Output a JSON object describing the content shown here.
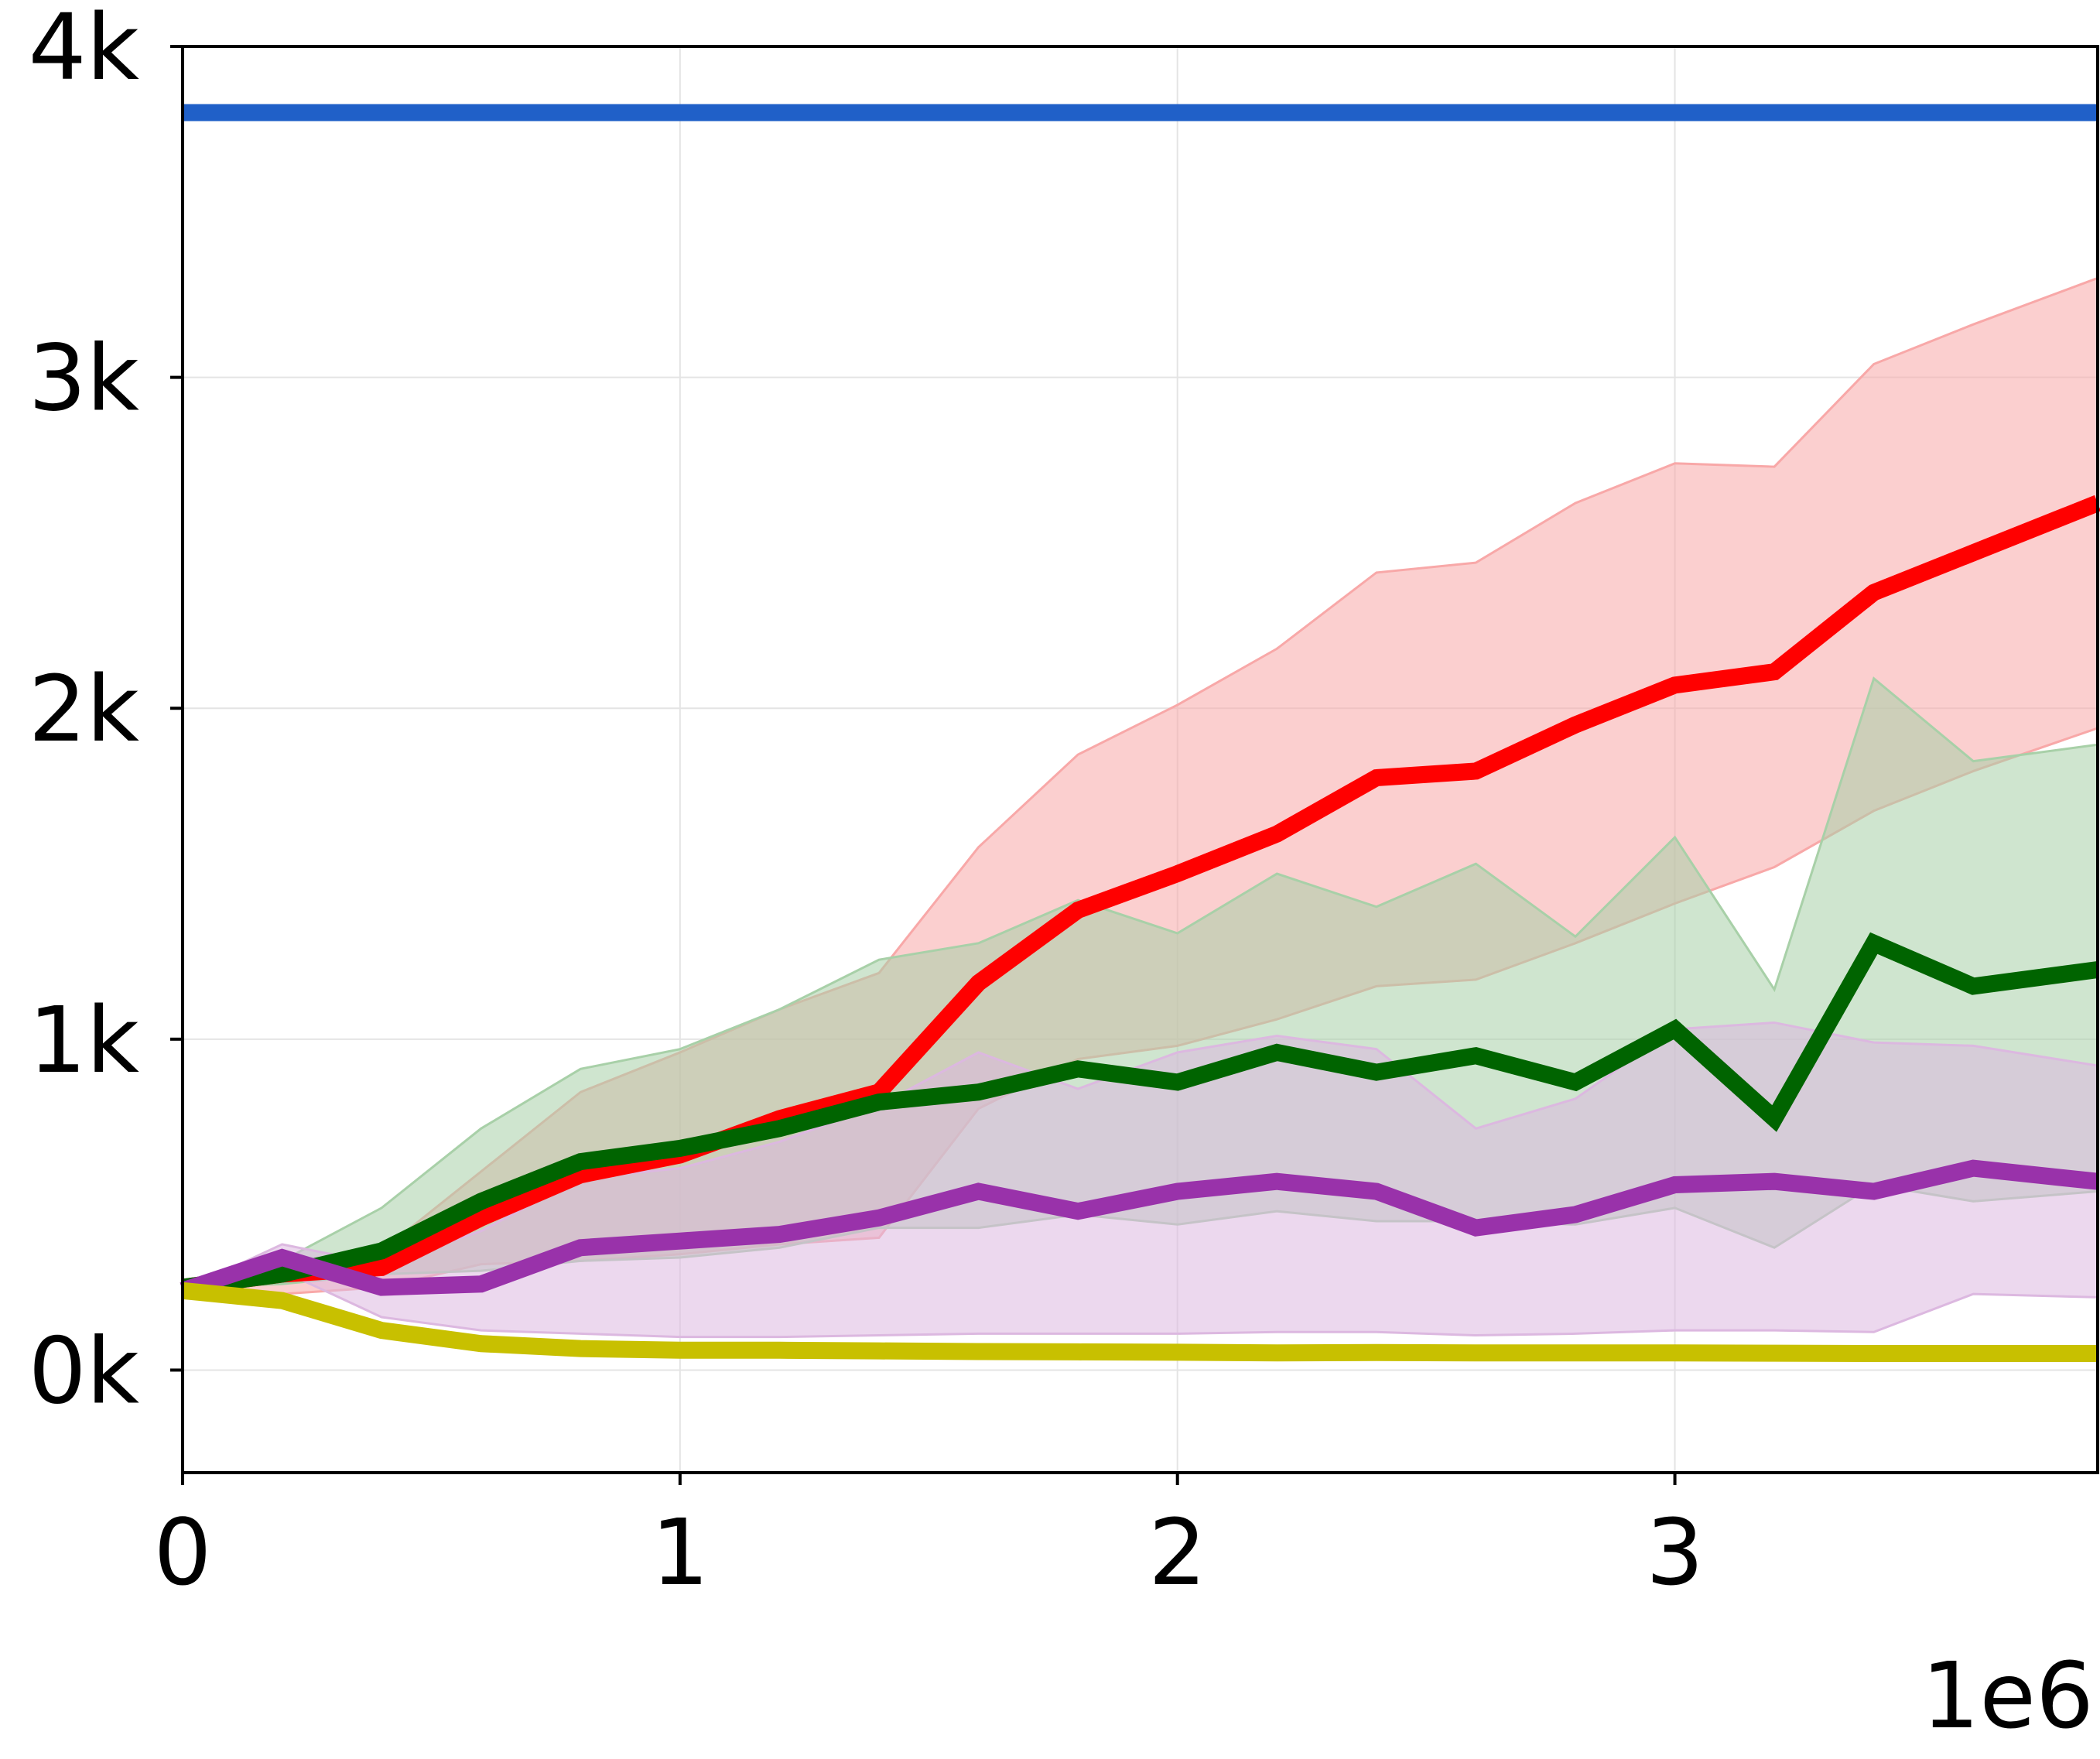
{
  "chart_data": {
    "type": "line",
    "title": "",
    "xlabel": "",
    "ylabel": "",
    "x_offset_label": "1e6",
    "xlim": [
      0,
      3.85
    ],
    "ylim": [
      -310,
      4000
    ],
    "grid": true,
    "legend": "none",
    "x_ticks": [
      {
        "value": 0,
        "label": "0"
      },
      {
        "value": 1,
        "label": "1"
      },
      {
        "value": 2,
        "label": "2"
      },
      {
        "value": 3,
        "label": "3"
      }
    ],
    "y_ticks": [
      {
        "value": 0,
        "label": "0k"
      },
      {
        "value": 1000,
        "label": "1k"
      },
      {
        "value": 2000,
        "label": "2k"
      },
      {
        "value": 3000,
        "label": "3k"
      },
      {
        "value": 4000,
        "label": "4k"
      }
    ],
    "x": [
      0,
      0.2,
      0.4,
      0.6,
      0.8,
      1.0,
      1.2,
      1.4,
      1.6,
      1.8,
      2.0,
      2.2,
      2.4,
      2.6,
      2.8,
      3.0,
      3.2,
      3.4,
      3.6,
      3.85
    ],
    "series": [
      {
        "color": "#2060c8",
        "values": [
          3800,
          3800,
          3800,
          3800,
          3800,
          3800,
          3800,
          3800,
          3800,
          3800,
          3800,
          3800,
          3800,
          3800,
          3800,
          3800,
          3800,
          3800,
          3800,
          3800
        ]
      },
      {
        "color": "#ff0000",
        "band_color": "#f8a8a8",
        "values": [
          250,
          290,
          310,
          460,
          590,
          650,
          760,
          840,
          1170,
          1390,
          1500,
          1620,
          1790,
          1810,
          1950,
          2070,
          2110,
          2350,
          2470,
          2620
        ],
        "lower": [
          250,
          230,
          250,
          320,
          330,
          350,
          380,
          400,
          790,
          940,
          980,
          1060,
          1160,
          1180,
          1290,
          1410,
          1520,
          1690,
          1810,
          1940
        ],
        "upper": [
          250,
          310,
          360,
          600,
          840,
          960,
          1090,
          1200,
          1580,
          1860,
          2010,
          2180,
          2410,
          2440,
          2620,
          2740,
          2730,
          3040,
          3160,
          3300
        ]
      },
      {
        "color": "#006400",
        "band_color": "#a8d0a8",
        "values": [
          250,
          290,
          360,
          510,
          630,
          670,
          730,
          810,
          840,
          910,
          870,
          960,
          900,
          950,
          870,
          1030,
          760,
          1290,
          1160,
          1210
        ],
        "lower": [
          250,
          260,
          290,
          300,
          330,
          340,
          370,
          430,
          430,
          470,
          440,
          480,
          450,
          450,
          440,
          490,
          370,
          560,
          510,
          540
        ],
        "upper": [
          250,
          330,
          490,
          730,
          910,
          970,
          1090,
          1240,
          1290,
          1420,
          1320,
          1500,
          1400,
          1530,
          1310,
          1610,
          1150,
          2090,
          1840,
          1890
        ]
      },
      {
        "color": "#9932aa",
        "band_color": "#dcb8e0",
        "values": [
          240,
          340,
          250,
          260,
          370,
          390,
          410,
          460,
          540,
          480,
          540,
          570,
          540,
          430,
          470,
          560,
          570,
          540,
          610,
          570
        ],
        "lower": [
          240,
          300,
          160,
          120,
          110,
          100,
          100,
          105,
          110,
          110,
          110,
          115,
          115,
          105,
          110,
          120,
          120,
          115,
          230,
          220
        ],
        "upper": [
          240,
          380,
          320,
          420,
          580,
          610,
          690,
          800,
          960,
          850,
          960,
          1010,
          970,
          730,
          820,
          1030,
          1050,
          990,
          980,
          920
        ]
      },
      {
        "color": "#c8c000",
        "values": [
          240,
          210,
          120,
          80,
          65,
          60,
          60,
          58,
          56,
          55,
          54,
          52,
          53,
          52,
          52,
          52,
          51,
          50,
          50,
          50
        ]
      }
    ]
  }
}
